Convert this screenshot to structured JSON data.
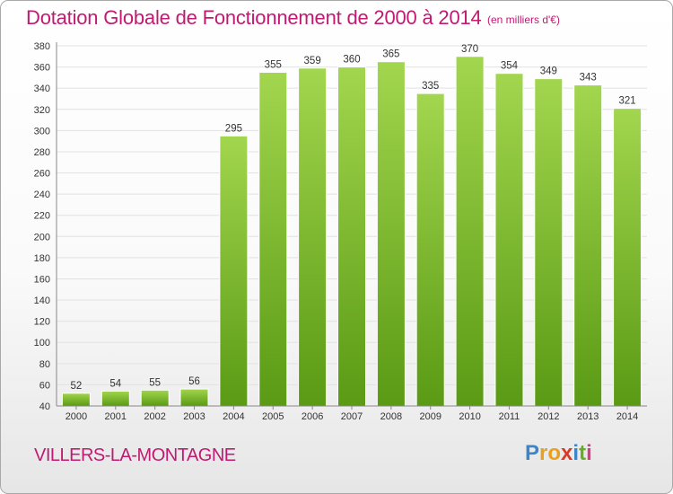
{
  "title": "Dotation Globale de Fonctionnement de 2000 à 2014",
  "subtitle": "(en milliers d'€)",
  "place": "VILLERS-LA-MONTAGNE",
  "logo": {
    "letters": [
      "P",
      "r",
      "o",
      "x",
      "i",
      "t",
      "i"
    ],
    "colors": [
      "#3a86c8",
      "#e8a020",
      "#e8a020",
      "#d83a2a",
      "#3a86c8",
      "#6aaa2a",
      "#d83a8a"
    ]
  },
  "colors": {
    "accent": "#c01a72",
    "bar_top": "#a2d64e",
    "bar_bottom": "#5a9a14",
    "grid": "#e2e2e2",
    "axis": "#888888"
  },
  "chart_data": {
    "type": "bar",
    "title": "Dotation Globale de Fonctionnement de 2000 à 2014",
    "subtitle": "(en milliers d'€)",
    "categories": [
      "2000",
      "2001",
      "2002",
      "2003",
      "2004",
      "2005",
      "2006",
      "2007",
      "2008",
      "2009",
      "2010",
      "2011",
      "2012",
      "2013",
      "2014"
    ],
    "values": [
      52,
      54,
      55,
      56,
      295,
      355,
      359,
      360,
      365,
      335,
      370,
      354,
      349,
      343,
      321
    ],
    "xlabel": "",
    "ylabel": "",
    "ylim": [
      40,
      380
    ],
    "yticks": [
      40,
      60,
      80,
      100,
      120,
      140,
      160,
      180,
      200,
      220,
      240,
      260,
      280,
      300,
      320,
      340,
      360,
      380
    ],
    "grid": true,
    "legend": "none",
    "data_labels": true
  }
}
